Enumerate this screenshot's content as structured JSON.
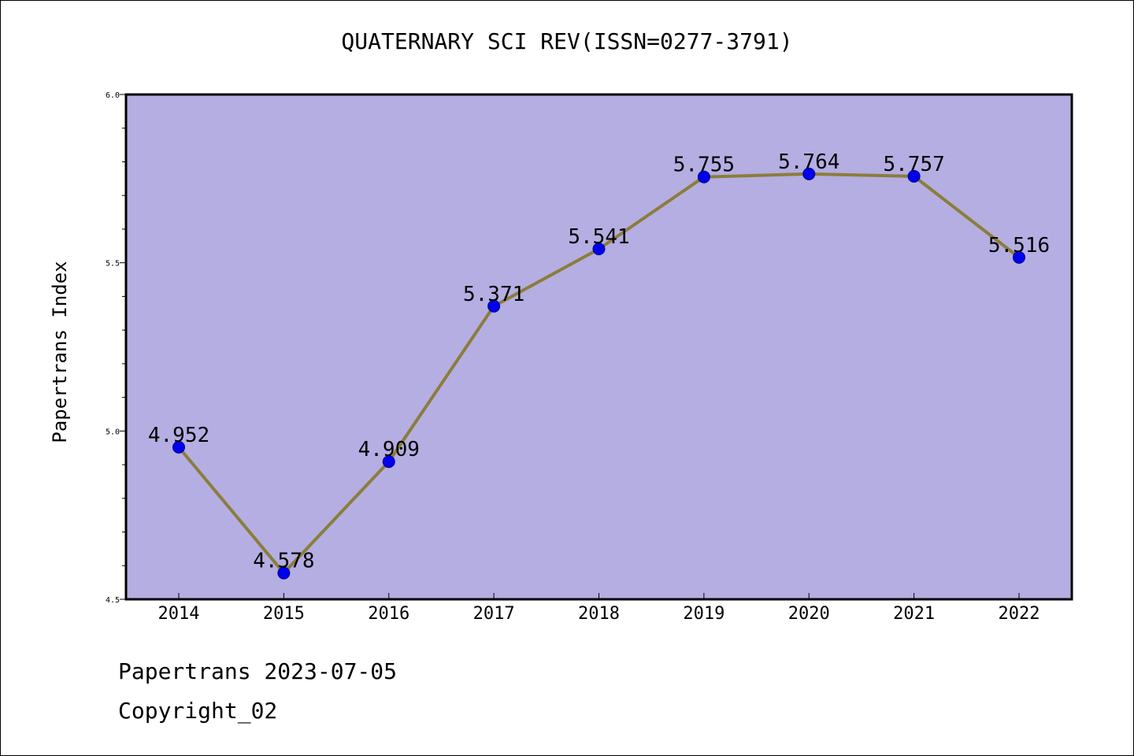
{
  "title": "QUATERNARY SCI REV(ISSN=0277-3791)",
  "footer": {
    "date_line": "Papertrans 2023-07-05",
    "copyright_line": "Copyright_02"
  },
  "colors": {
    "plot_background": "#b4aee2",
    "line": "#8b7d3a",
    "marker": "#0000ee",
    "marker_edge": "#00008b"
  },
  "chart_data": {
    "type": "line",
    "title": "QUATERNARY SCI REV(ISSN=0277-3791)",
    "xlabel": "",
    "ylabel": "Papertrans Index",
    "ylim": [
      4.5,
      6.0
    ],
    "yticks": [
      "4.5",
      "5.0",
      "5.5",
      "6.0"
    ],
    "grid": false,
    "categories": [
      "2014",
      "2015",
      "2016",
      "2017",
      "2018",
      "2019",
      "2020",
      "2021",
      "2022"
    ],
    "series": [
      {
        "values": [
          4.952,
          4.578,
          4.909,
          5.371,
          5.541,
          5.755,
          5.764,
          5.757,
          5.516
        ],
        "labels": [
          "4.952",
          "4.578",
          "4.909",
          "5.371",
          "5.541",
          "5.755",
          "5.764",
          "5.757",
          "5.516"
        ]
      }
    ]
  }
}
